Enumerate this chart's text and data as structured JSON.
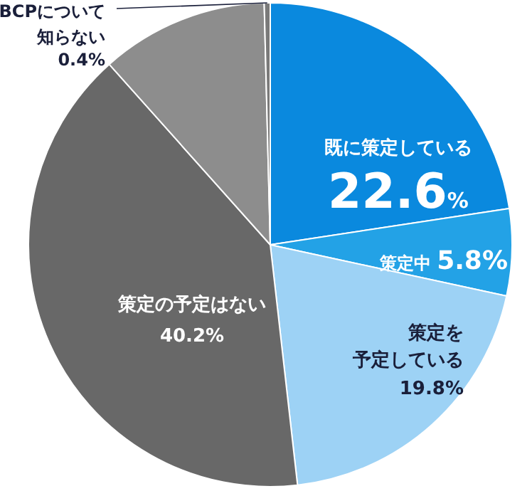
{
  "chart_data": {
    "type": "pie",
    "categories": [
      "既に策定している",
      "策定中",
      "策定を予定している",
      "策定の予定はない",
      null,
      "BCPについて知らない"
    ],
    "values": [
      22.6,
      5.8,
      19.8,
      40.2,
      11.2,
      0.4
    ],
    "value_labels": [
      "22.6%",
      "5.8%",
      "19.8%",
      "40.2%",
      null,
      "0.4%"
    ],
    "colors": [
      "#0a89de",
      "#23a2e6",
      "#9dd2f5",
      "#686868",
      "#8d8d8d",
      "#7a7a7a"
    ]
  }
}
